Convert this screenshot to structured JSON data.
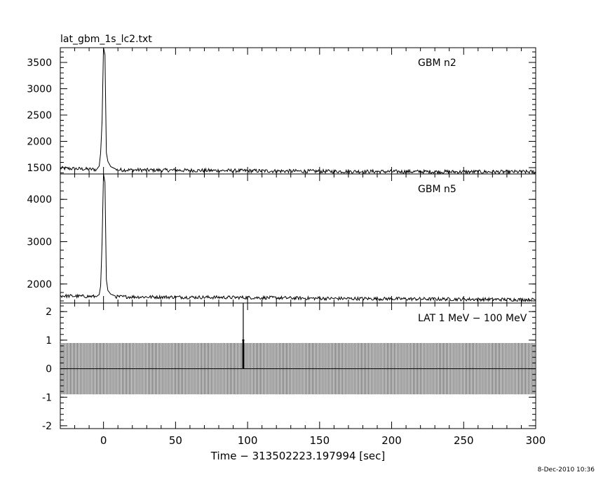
{
  "title": "lat_gbm_1s_lc2.txt",
  "timestamp": "8-Dec-2010 10:36",
  "chart_data": [
    {
      "type": "line",
      "series_label": "GBM n2",
      "xlim": [
        -30,
        300
      ],
      "ylim": [
        1380,
        3780
      ],
      "yticks": [
        1500,
        2000,
        2500,
        3000,
        3500
      ],
      "baseline": [
        [
          -30,
          1490
        ],
        [
          0,
          1460
        ],
        [
          50,
          1450
        ],
        [
          100,
          1440
        ],
        [
          150,
          1430
        ],
        [
          200,
          1425
        ],
        [
          250,
          1420
        ],
        [
          300,
          1420
        ]
      ],
      "burst": [
        [
          -5,
          1460
        ],
        [
          -3,
          1530
        ],
        [
          -2,
          1780
        ],
        [
          -1,
          2400
        ],
        [
          0,
          3780
        ],
        [
          1,
          3650
        ],
        [
          2,
          1780
        ],
        [
          3,
          1620
        ],
        [
          5,
          1520
        ],
        [
          8,
          1480
        ]
      ],
      "noise": 35
    },
    {
      "type": "line",
      "series_label": "GBM n5",
      "xlim": [
        -30,
        300
      ],
      "ylim": [
        1550,
        4600
      ],
      "yticks": [
        2000,
        3000,
        4000
      ],
      "baseline": [
        [
          -30,
          1720
        ],
        [
          0,
          1700
        ],
        [
          50,
          1690
        ],
        [
          100,
          1680
        ],
        [
          150,
          1660
        ],
        [
          200,
          1650
        ],
        [
          250,
          1640
        ],
        [
          300,
          1630
        ]
      ],
      "burst": [
        [
          -5,
          1700
        ],
        [
          -3,
          1750
        ],
        [
          -2,
          1950
        ],
        [
          -1,
          3000
        ],
        [
          0,
          4600
        ],
        [
          1,
          4400
        ],
        [
          2,
          2100
        ],
        [
          3,
          1850
        ],
        [
          5,
          1760
        ],
        [
          8,
          1720
        ]
      ],
      "noise": 40
    },
    {
      "type": "bar",
      "series_label": "LAT 1 MeV − 100 MeV",
      "xlim": [
        -30,
        300
      ],
      "ylim": [
        -2.1,
        2.3
      ],
      "yticks": [
        -2,
        -1,
        0,
        1,
        2
      ],
      "error_bar_halfwidth": 0.9,
      "spike": {
        "x": 97,
        "value": 1,
        "upper": 2.3
      },
      "x_step": 1
    }
  ],
  "x_axis": {
    "label": "Time − 313502223.197994 [sec]",
    "ticks": [
      0,
      50,
      100,
      150,
      200,
      250,
      300
    ]
  }
}
